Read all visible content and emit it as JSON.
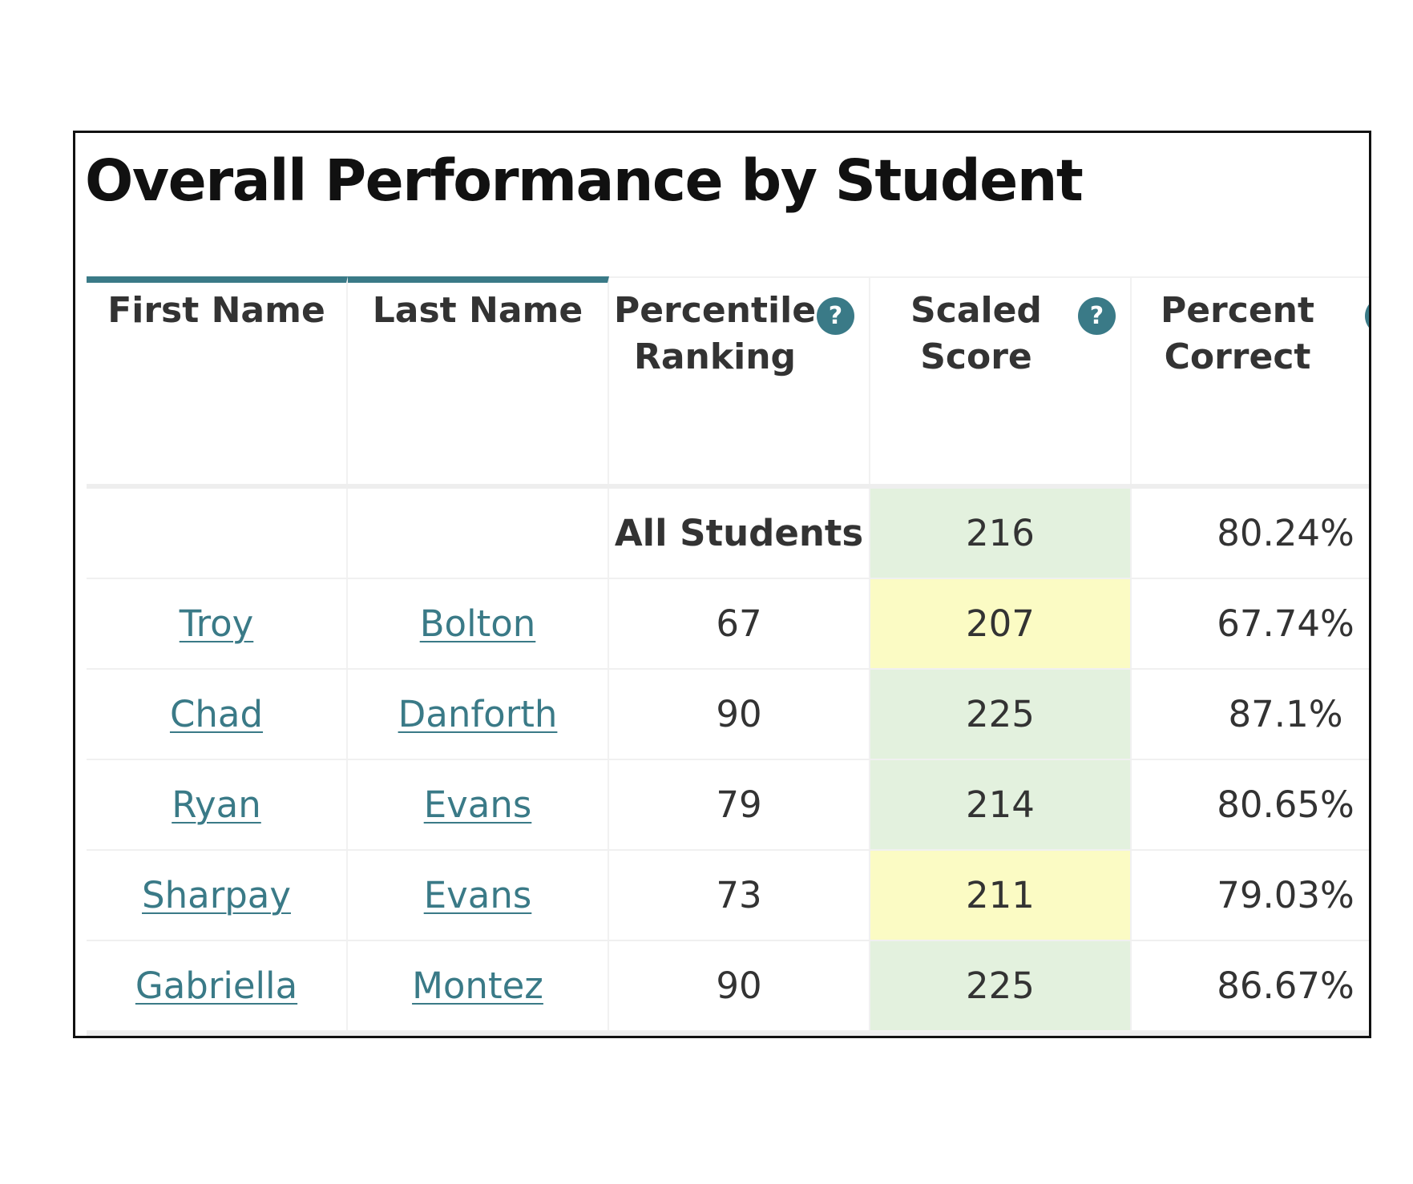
{
  "title": "Overall Performance by Student",
  "colors": {
    "accent": "#3a7a87",
    "score_good_bg": "#e3f1de",
    "score_warn_bg": "#fbfbc4"
  },
  "table": {
    "headers": [
      {
        "line1": "First Name",
        "line2": "",
        "help": false
      },
      {
        "line1": "Last Name",
        "line2": "",
        "help": false
      },
      {
        "line1": "Percentile",
        "line2": "Ranking",
        "help": true
      },
      {
        "line1": "Scaled",
        "line2": "Score",
        "help": true
      },
      {
        "line1": "Percent",
        "line2": "Correct",
        "help": true
      }
    ],
    "help_icon_label": "?",
    "summary": {
      "first": "",
      "last": "",
      "label": "All Students",
      "scaled_score": "216",
      "scaled_score_status": "good",
      "percent_correct": "80.24%"
    },
    "rows": [
      {
        "first": "Troy",
        "last": "Bolton",
        "percentile": "67",
        "scaled_score": "207",
        "scaled_score_status": "warn",
        "percent_correct": "67.74%"
      },
      {
        "first": "Chad",
        "last": "Danforth",
        "percentile": "90",
        "scaled_score": "225",
        "scaled_score_status": "good",
        "percent_correct": "87.1%"
      },
      {
        "first": "Ryan",
        "last": "Evans",
        "percentile": "79",
        "scaled_score": "214",
        "scaled_score_status": "good",
        "percent_correct": "80.65%"
      },
      {
        "first": "Sharpay",
        "last": "Evans",
        "percentile": "73",
        "scaled_score": "211",
        "scaled_score_status": "warn",
        "percent_correct": "79.03%"
      },
      {
        "first": "Gabriella",
        "last": "Montez",
        "percentile": "90",
        "scaled_score": "225",
        "scaled_score_status": "good",
        "percent_correct": "86.67%"
      }
    ]
  }
}
